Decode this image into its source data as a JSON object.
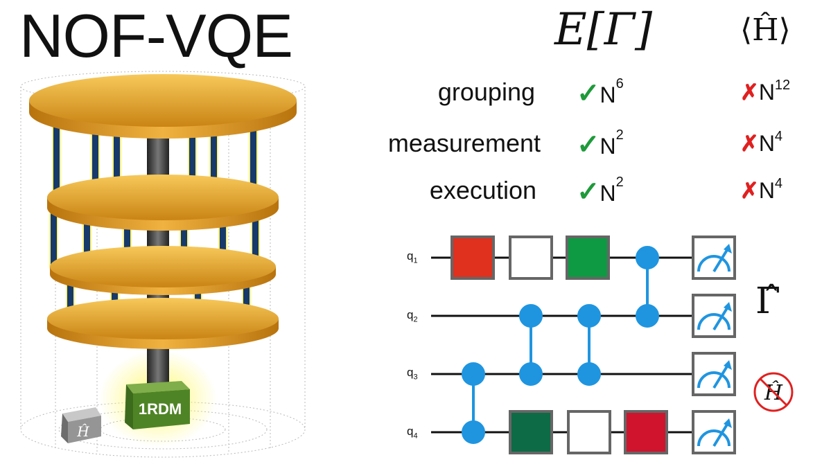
{
  "title": "NOF-VQE",
  "headers": {
    "left": "E[Γ]",
    "right": "⟨Ĥ⟩"
  },
  "rows": [
    {
      "label": "grouping",
      "left_base": "N",
      "left_exp": "6",
      "right_base": "N",
      "right_exp": "12"
    },
    {
      "label": "measurement",
      "left_base": "N",
      "left_exp": "2",
      "right_base": "N",
      "right_exp": "4"
    },
    {
      "label": "execution",
      "left_base": "N",
      "left_exp": "2",
      "right_base": "N",
      "right_exp": "4"
    }
  ],
  "circuit": {
    "qubits": [
      {
        "base": "q",
        "sub": "1"
      },
      {
        "base": "q",
        "sub": "2"
      },
      {
        "base": "q",
        "sub": "3"
      },
      {
        "base": "q",
        "sub": "4"
      }
    ],
    "gate_colors": {
      "red": "#e0301e",
      "green": "#0e9a43",
      "dark_green": "#0d6b46",
      "crimson": "#d0142e",
      "wire_blue": "#1f95e0"
    }
  },
  "gamma_label": "Γ̂",
  "no_H_label": "Ĥ",
  "tower": {
    "cube_label": "1RDM",
    "h_block_label": "Ĥ"
  },
  "icons": [
    "check-icon",
    "cross-icon",
    "measurement-meter-icon",
    "no-hamiltonian-icon"
  ]
}
